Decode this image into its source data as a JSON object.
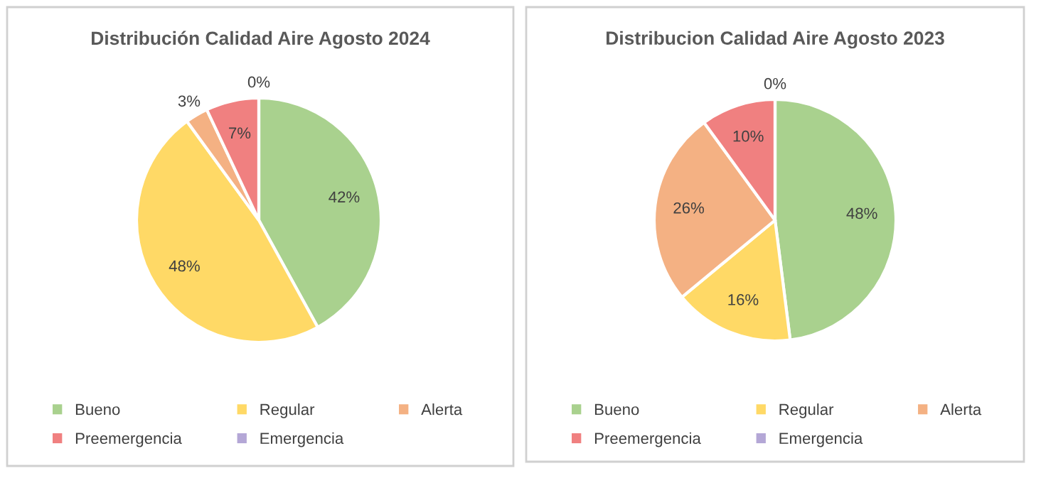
{
  "chart_data": [
    {
      "type": "pie",
      "title": "Distribución Calidad Aire Agosto 2024",
      "categories": [
        "Bueno",
        "Regular",
        "Alerta",
        "Preemergencia",
        "Emergencia"
      ],
      "values": [
        42,
        48,
        3,
        7,
        0
      ],
      "colors": [
        "#a9d18e",
        "#ffd966",
        "#f4b183",
        "#f08080",
        "#b4a7d6"
      ],
      "value_labels": [
        "42%",
        "48%",
        "3%",
        "7%",
        "0%"
      ],
      "legend": "bottom"
    },
    {
      "type": "pie",
      "title": "Distribucion Calidad Aire Agosto 2023",
      "categories": [
        "Bueno",
        "Regular",
        "Alerta",
        "Preemergencia",
        "Emergencia"
      ],
      "values": [
        48,
        16,
        26,
        10,
        0
      ],
      "colors": [
        "#a9d18e",
        "#ffd966",
        "#f4b183",
        "#f08080",
        "#b4a7d6"
      ],
      "value_labels": [
        "48%",
        "16%",
        "26%",
        "10%",
        "0%"
      ],
      "legend": "bottom"
    }
  ]
}
